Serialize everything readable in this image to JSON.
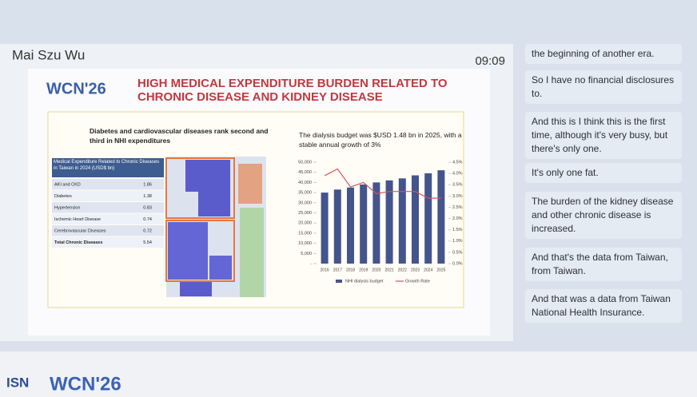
{
  "header": {
    "speaker": "Mai Szu Wu",
    "time": "09:09"
  },
  "slide": {
    "title": "HIGH MEDICAL EXPENDITURE BURDEN RELATED TO CHRONIC DISEASE AND KIDNEY DISEASE",
    "left_caption": "Diabetes and cardiovascular diseases rank second and third in NHI expenditures",
    "right_caption": "The dialysis budget was $USD 1.48 bn in 2025, with a stable annual growth of 3%",
    "logo": "WCN'26",
    "table": {
      "header": "Medical Expenditure Related to Chronic Diseases in Taiwan in 2024  (USD$ bn)",
      "rows": [
        [
          "AKI and CKD",
          "1.86"
        ],
        [
          "Diabetes",
          "1.38"
        ],
        [
          "Hypertension",
          "0.83"
        ],
        [
          "Ischemic Heart Disease",
          "0.74"
        ],
        [
          "Cerebrovascular Diseases",
          "0.72"
        ],
        [
          "Total Chronic Diseases",
          "5.54"
        ]
      ]
    }
  },
  "chart_data": {
    "type": "bar",
    "categories": [
      "2016",
      "2017",
      "2018",
      "2019",
      "2020",
      "2021",
      "2022",
      "2023",
      "2024",
      "2025"
    ],
    "series": [
      {
        "name": "NHI dialysis budget",
        "color": "#44548c",
        "values": [
          35000,
          36500,
          37500,
          39000,
          40000,
          41000,
          42000,
          43500,
          44500,
          46000
        ]
      },
      {
        "name": "Growth Rate",
        "color": "#d9535a",
        "type": "line",
        "axis": "y2",
        "values": [
          3.9,
          4.2,
          3.4,
          3.6,
          3.1,
          3.2,
          3.2,
          3.2,
          2.9,
          2.9
        ]
      }
    ],
    "ylim": [
      0,
      50000
    ],
    "yticks": [
      {
        "value": 0,
        "label": "-"
      },
      {
        "value": 5000,
        "label": "5,000"
      },
      {
        "value": 10000,
        "label": "10,000"
      },
      {
        "value": 15000,
        "label": "15,000"
      },
      {
        "value": 20000,
        "label": "20,000"
      },
      {
        "value": 25000,
        "label": "25,000"
      },
      {
        "value": 30000,
        "label": "30,000"
      },
      {
        "value": 35000,
        "label": "35,000"
      },
      {
        "value": 40000,
        "label": "40,000"
      },
      {
        "value": 45000,
        "label": "45,000"
      },
      {
        "value": 50000,
        "label": "50,000"
      }
    ],
    "y2lim": [
      0,
      4.5
    ],
    "y2ticks": [
      {
        "value": 0,
        "label": "0.0%"
      },
      {
        "value": 0.5,
        "label": "0.5%"
      },
      {
        "value": 1,
        "label": "1.0%"
      },
      {
        "value": 1.5,
        "label": "1.5%"
      },
      {
        "value": 2,
        "label": "2.0%"
      },
      {
        "value": 2.5,
        "label": "2.5%"
      },
      {
        "value": 3,
        "label": "3.0%"
      },
      {
        "value": 3.5,
        "label": "3.5%"
      },
      {
        "value": 4,
        "label": "4.0%"
      },
      {
        "value": 4.5,
        "label": "4.5%"
      }
    ]
  },
  "captions": [
    "the beginning of another era.",
    "So I have no financial disclosures to.",
    "And this is I think this is the first time, although it's very busy, but there's only one.",
    "It's only one fat.",
    "The burden of the kidney disease and other chronic disease is increased.",
    "And that's the data from Taiwan, from Taiwan.",
    "And that was a data from Taiwan National Health Insurance."
  ],
  "footer": {
    "logo_left": "ISN",
    "logo_right": "WCN'26"
  }
}
